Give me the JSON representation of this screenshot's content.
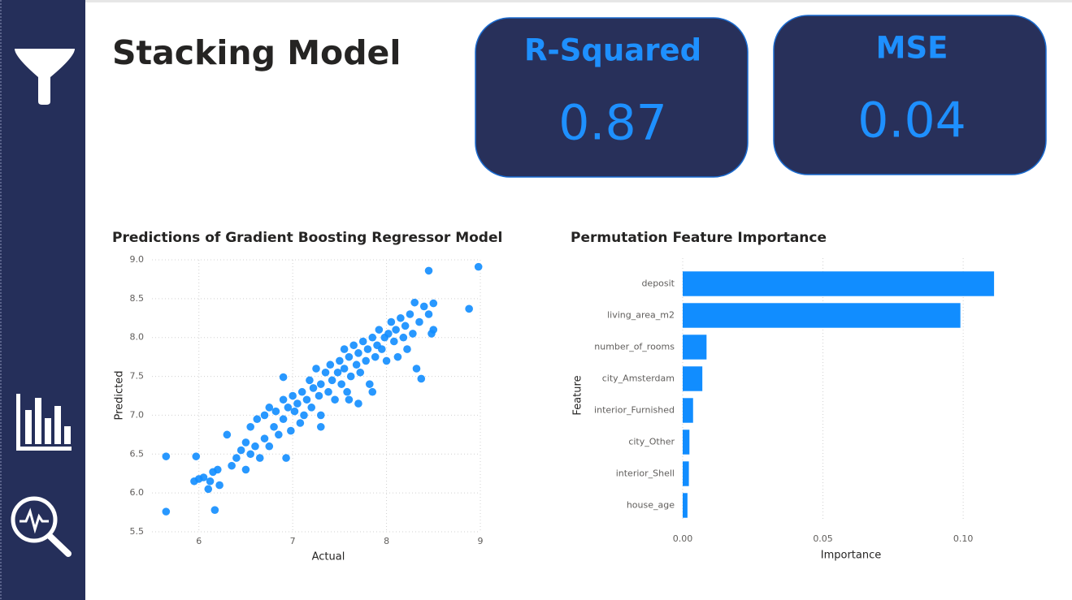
{
  "title": "Stacking Model",
  "kpis": [
    {
      "label": "R-Squared",
      "value": 0.87
    },
    {
      "label": "MSE",
      "value": 0.04
    }
  ],
  "chart_data": [
    {
      "type": "scatter",
      "title": "Predictions of Gradient Boosting Regressor Model",
      "x_label": "Actual",
      "y_label": "Predicted",
      "color": "#118dff",
      "grid": true,
      "xlim": [
        5.5,
        9
      ],
      "xticks": [
        6,
        7,
        8,
        9
      ],
      "ylim": [
        5.5,
        9.0
      ],
      "yticks": [
        5.5,
        {
          "value": 6,
          "label": "6.0"
        },
        6.5,
        {
          "value": 7,
          "label": "7.0"
        },
        7.5,
        {
          "value": 8,
          "label": "8.0"
        },
        8.5,
        {
          "value": 9,
          "label": "9.0"
        }
      ],
      "x": [
        5.65,
        5.65,
        5.95,
        5.97,
        6.17,
        8.45,
        8.98,
        8.88,
        8.37,
        6.93,
        6.9,
        8.5,
        8.5,
        6.0,
        6.05,
        6.1,
        6.12,
        6.15,
        6.2,
        6.22,
        6.3,
        6.35,
        6.4,
        6.45,
        6.5,
        6.5,
        6.55,
        6.55,
        6.6,
        6.62,
        6.65,
        6.7,
        6.7,
        6.75,
        6.8,
        6.82,
        6.85,
        6.9,
        6.9,
        6.95,
        6.98,
        7.0,
        7.02,
        7.05,
        7.08,
        7.1,
        7.12,
        7.15,
        7.18,
        7.2,
        7.22,
        7.25,
        7.28,
        7.3,
        7.3,
        7.35,
        7.38,
        7.4,
        7.42,
        7.45,
        7.48,
        7.5,
        7.52,
        7.55,
        7.55,
        7.58,
        7.6,
        7.62,
        7.65,
        7.68,
        7.7,
        7.7,
        7.72,
        7.75,
        7.78,
        7.8,
        7.82,
        7.85,
        7.88,
        7.9,
        7.92,
        7.95,
        7.98,
        8.0,
        8.02,
        8.05,
        8.08,
        8.1,
        8.12,
        8.15,
        8.18,
        8.2,
        8.22,
        8.25,
        8.28,
        8.3,
        8.32,
        8.35,
        8.4,
        8.45,
        8.48,
        7.6,
        7.3,
        6.75,
        7.85
      ],
      "values": [
        6.47,
        5.76,
        6.15,
        6.47,
        5.78,
        8.86,
        8.91,
        8.37,
        7.47,
        6.45,
        7.49,
        8.44,
        8.1,
        6.18,
        6.2,
        6.05,
        6.15,
        6.27,
        6.3,
        6.1,
        6.75,
        6.35,
        6.45,
        6.55,
        6.3,
        6.65,
        6.85,
        6.5,
        6.6,
        6.95,
        6.45,
        6.7,
        7.0,
        6.6,
        6.85,
        7.05,
        6.75,
        6.95,
        7.2,
        7.1,
        6.8,
        7.25,
        7.05,
        7.15,
        6.9,
        7.3,
        7.0,
        7.2,
        7.45,
        7.1,
        7.35,
        7.6,
        7.25,
        7.4,
        7.0,
        7.55,
        7.3,
        7.65,
        7.45,
        7.2,
        7.55,
        7.7,
        7.4,
        7.6,
        7.85,
        7.3,
        7.75,
        7.5,
        7.9,
        7.65,
        7.8,
        7.15,
        7.55,
        7.95,
        7.7,
        7.85,
        7.4,
        8.0,
        7.75,
        7.9,
        8.1,
        7.85,
        8.0,
        7.7,
        8.05,
        8.2,
        7.95,
        8.1,
        7.75,
        8.25,
        8.0,
        8.15,
        7.85,
        8.3,
        8.05,
        8.45,
        7.6,
        8.2,
        8.4,
        8.3,
        8.05,
        7.2,
        6.85,
        7.1,
        7.3
      ]
    },
    {
      "type": "bar",
      "orientation": "horizontal",
      "title": "Permutation Feature Importance",
      "x_label": "Importance",
      "y_label": "Feature",
      "color": "#118dff",
      "grid": true,
      "categories": [
        "deposit",
        "living_area_m2",
        "number_of_rooms",
        "city_Amsterdam",
        "interior_Furnished",
        "city_Other",
        "interior_Shell",
        "house_age"
      ],
      "values": [
        0.111,
        0.099,
        0.0085,
        0.007,
        0.0037,
        0.0024,
        0.0022,
        0.0017
      ],
      "xlim": [
        0,
        0.113
      ],
      "xticks": [
        {
          "value": 0,
          "label": "0.00"
        },
        0.05,
        {
          "value": 0.1,
          "label": "0.10"
        }
      ]
    }
  ]
}
